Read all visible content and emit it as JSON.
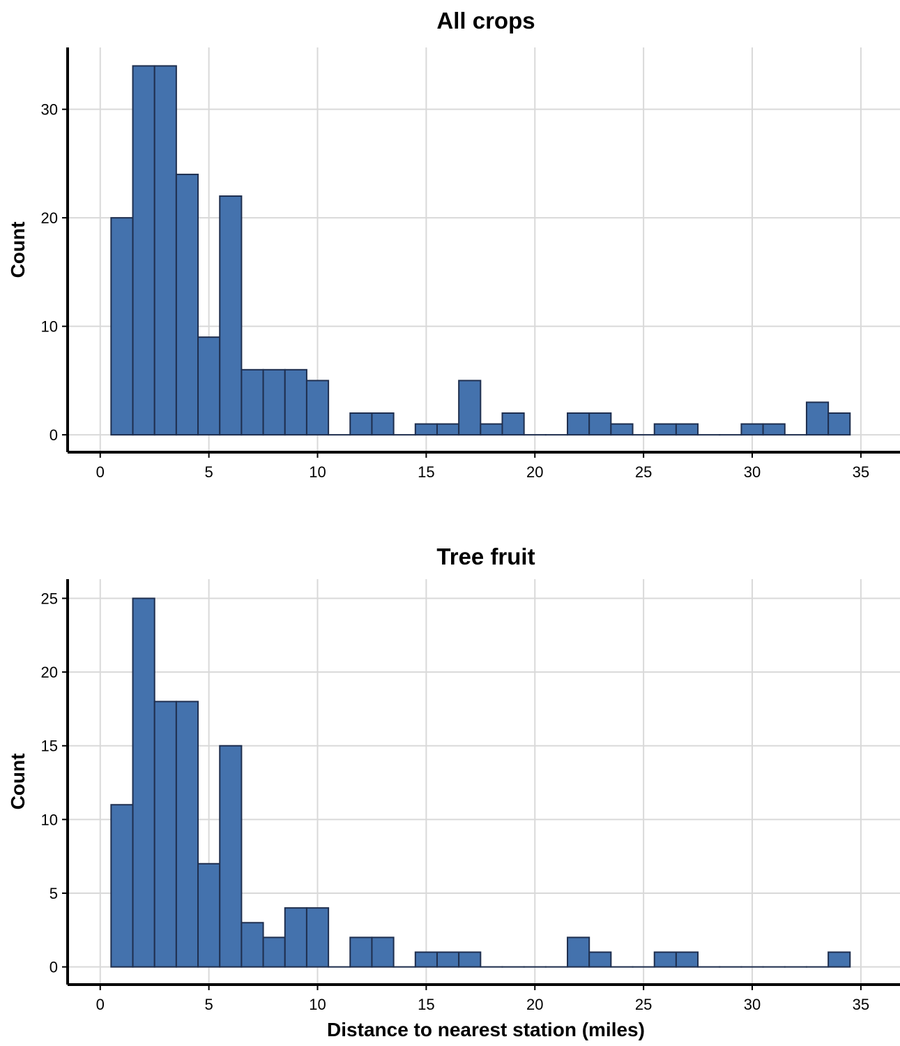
{
  "chart_data": [
    {
      "type": "bar",
      "title": "All crops",
      "ylabel": "Count",
      "xlabel": "",
      "xlim": [
        -1.5,
        36.8
      ],
      "ylim": [
        -1.6,
        35.7
      ],
      "xticks": [
        0,
        5,
        10,
        15,
        20,
        25,
        30,
        35
      ],
      "yticks": [
        0,
        10,
        20,
        30
      ],
      "bin_width": 1,
      "x": [
        1,
        2,
        3,
        4,
        5,
        6,
        7,
        8,
        9,
        10,
        11,
        12,
        13,
        14,
        15,
        16,
        17,
        18,
        19,
        20,
        21,
        22,
        23,
        24,
        25,
        26,
        27,
        28,
        29,
        30,
        31,
        32,
        33,
        34
      ],
      "values": [
        20,
        34,
        34,
        24,
        9,
        22,
        6,
        6,
        6,
        5,
        0,
        2,
        2,
        0,
        1,
        1,
        5,
        1,
        2,
        0,
        0,
        2,
        2,
        1,
        0,
        1,
        1,
        0,
        0,
        1,
        1,
        0,
        3,
        2
      ],
      "grid": true,
      "bar_color": "#4472ad",
      "bar_edge_color": "#1f2f4f"
    },
    {
      "type": "bar",
      "title": "Tree fruit",
      "ylabel": "Count",
      "xlabel": "Distance to nearest station (miles)",
      "xlim": [
        -1.5,
        36.8
      ],
      "ylim": [
        -1.2,
        26.3
      ],
      "xticks": [
        0,
        5,
        10,
        15,
        20,
        25,
        30,
        35
      ],
      "yticks": [
        0,
        5,
        10,
        15,
        20,
        25
      ],
      "bin_width": 1,
      "x": [
        1,
        2,
        3,
        4,
        5,
        6,
        7,
        8,
        9,
        10,
        11,
        12,
        13,
        14,
        15,
        16,
        17,
        18,
        19,
        20,
        21,
        22,
        23,
        24,
        25,
        26,
        27,
        28,
        29,
        30,
        31,
        32,
        33,
        34
      ],
      "values": [
        11,
        25,
        18,
        18,
        7,
        15,
        3,
        2,
        4,
        4,
        0,
        2,
        2,
        0,
        1,
        1,
        1,
        0,
        0,
        0,
        0,
        2,
        1,
        0,
        0,
        1,
        1,
        0,
        0,
        0,
        0,
        0,
        0,
        1
      ],
      "grid": true,
      "bar_color": "#4472ad",
      "bar_edge_color": "#1f2f4f"
    }
  ]
}
